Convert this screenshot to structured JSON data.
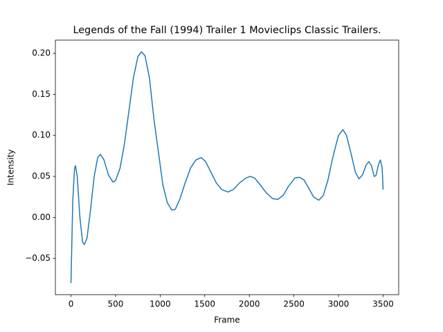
{
  "chart_data": {
    "type": "line",
    "title": "Legends of the Fall (1994) Trailer 1  Movieclips Classic Trailers.",
    "x_label": "Frame",
    "y_label": "Intensity",
    "color": "#1f77b4",
    "x": [
      0,
      10,
      20,
      40,
      50,
      70,
      100,
      130,
      150,
      180,
      220,
      260,
      300,
      330,
      370,
      420,
      470,
      500,
      550,
      600,
      650,
      700,
      750,
      790,
      830,
      880,
      930,
      980,
      1030,
      1080,
      1130,
      1170,
      1220,
      1280,
      1340,
      1400,
      1460,
      1510,
      1570,
      1630,
      1690,
      1760,
      1820,
      1890,
      1960,
      2010,
      2060,
      2120,
      2190,
      2260,
      2320,
      2380,
      2440,
      2510,
      2560,
      2610,
      2660,
      2720,
      2780,
      2830,
      2880,
      2940,
      3000,
      3050,
      3090,
      3140,
      3190,
      3230,
      3270,
      3310,
      3340,
      3370,
      3400,
      3420,
      3450,
      3470,
      3490,
      3500
    ],
    "values": [
      -0.08,
      -0.03,
      0.02,
      0.06,
      0.063,
      0.05,
      0.0,
      -0.03,
      -0.033,
      -0.025,
      0.01,
      0.05,
      0.073,
      0.077,
      0.07,
      0.052,
      0.043,
      0.045,
      0.06,
      0.09,
      0.13,
      0.17,
      0.196,
      0.202,
      0.197,
      0.17,
      0.12,
      0.08,
      0.04,
      0.018,
      0.009,
      0.01,
      0.022,
      0.042,
      0.06,
      0.07,
      0.073,
      0.068,
      0.055,
      0.042,
      0.034,
      0.031,
      0.034,
      0.042,
      0.048,
      0.05,
      0.048,
      0.04,
      0.03,
      0.023,
      0.022,
      0.027,
      0.038,
      0.048,
      0.049,
      0.046,
      0.037,
      0.025,
      0.021,
      0.027,
      0.045,
      0.075,
      0.1,
      0.107,
      0.1,
      0.078,
      0.055,
      0.047,
      0.052,
      0.064,
      0.068,
      0.063,
      0.05,
      0.051,
      0.065,
      0.07,
      0.06,
      0.034
    ],
    "xlim": [
      -175,
      3675
    ],
    "xticks": [
      0,
      500,
      1000,
      1500,
      2000,
      2500,
      3000,
      3500
    ],
    "ylim": [
      -0.0941,
      0.2161
    ],
    "yticks": [
      {
        "value": -0.05,
        "label": "−0.05"
      },
      {
        "value": 0,
        "label": "0.00"
      },
      {
        "value": 0.05,
        "label": "0.05"
      },
      {
        "value": 0.1,
        "label": "0.10"
      },
      {
        "value": 0.15,
        "label": "0.15"
      },
      {
        "value": 0.2,
        "label": "0.20"
      }
    ]
  }
}
